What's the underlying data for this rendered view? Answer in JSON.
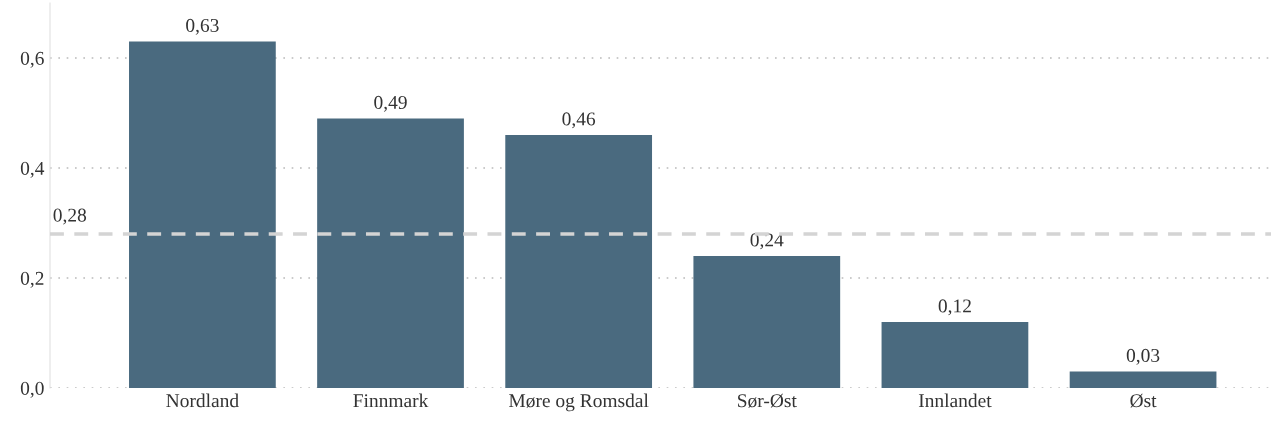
{
  "chart_data": {
    "type": "bar",
    "categories": [
      "Nordland",
      "Finnmark",
      "Møre og Romsdal",
      "Sør-Øst",
      "Innlandet",
      "Øst"
    ],
    "values": [
      0.63,
      0.49,
      0.46,
      0.24,
      0.12,
      0.03
    ],
    "value_labels": [
      "0,63",
      "0,49",
      "0,46",
      "0,24",
      "0,12",
      "0,03"
    ],
    "color": "#4a6a7f",
    "yticks": [
      {
        "value": 0,
        "label": "0,0"
      },
      {
        "value": 0.2,
        "label": "0,2"
      },
      {
        "value": 0.4,
        "label": "0,4"
      },
      {
        "value": 0.6,
        "label": "0,6"
      }
    ],
    "ylim": [
      0,
      0.7
    ],
    "ref_lines": [
      {
        "axis": "y",
        "value": 0.28,
        "label": "0,28",
        "color": "#d4d4d4",
        "line_style": "dashed"
      }
    ],
    "grid": "y",
    "legend": false
  }
}
